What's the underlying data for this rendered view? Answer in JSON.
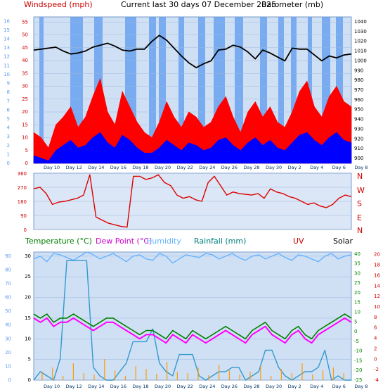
{
  "header": {
    "left_title": "Windspeed (mph)",
    "center_title": "Current last 30 days 07 December 2025",
    "right_title": "Barometer (mb)"
  },
  "lower_header": {
    "temperature": "Temperature (°C)",
    "dew_point": "Dew Point (°C)",
    "humidity": "Humidity",
    "rainfall": "Rainfall (mm)",
    "uv": "UV",
    "solar": "Solar"
  },
  "day_labels": [
    "Day 10",
    "Day 12",
    "Day 14",
    "Day 16",
    "Day 18",
    "Day 20",
    "Day 22",
    "Day 24",
    "Day 26",
    "Day 28",
    "Day 30",
    "Day 2",
    "Day 4",
    "Day 6",
    "Day 8"
  ],
  "compass": [
    "N",
    "W",
    "S",
    "E",
    "N"
  ],
  "colors": {
    "wind_gust": "#ff0000",
    "wind_avg": "#0000ff",
    "barometer": "#000000",
    "direction": "#dd0000",
    "temperature": "#008000",
    "dew_point": "#ff00ff",
    "humidity": "#66b3ff",
    "rainfall": "#3399cc",
    "uv": "#cc0000",
    "solar": "#ff9900",
    "plot_bg": "#cfe0f5",
    "bar_fill": "#5c9aee"
  },
  "chart_data": [
    {
      "type": "line",
      "name": "wind_barometer",
      "x_unit": "day",
      "x_range": [
        0,
        30
      ],
      "y_left_label": "Windspeed (mph)",
      "y_left_ticks_mph": [
        0,
        5,
        10,
        15,
        20,
        25,
        30,
        35,
        40,
        45,
        50,
        55
      ],
      "y_left_ticks_alt": [
        0,
        1,
        2,
        3,
        4,
        5,
        6,
        7,
        8,
        9,
        10,
        11,
        12,
        13,
        14,
        15,
        16
      ],
      "y_right_label": "Barometer (mb)",
      "y_right_ticks": [
        900,
        910,
        920,
        930,
        940,
        950,
        960,
        970,
        980,
        990,
        1000,
        1010,
        1020,
        1030,
        1040
      ],
      "barometer_mb": [
        1011,
        1012,
        1013,
        1014,
        1010,
        1007,
        1008,
        1010,
        1014,
        1016,
        1018,
        1015,
        1011,
        1010,
        1012,
        1012,
        1020,
        1026,
        1021,
        1013,
        1005,
        998,
        993,
        997,
        1000,
        1011,
        1012,
        1016,
        1014,
        1009,
        1002,
        1011,
        1008,
        1004,
        1000,
        1013,
        1012,
        1012,
        1006,
        1000,
        1005,
        1003,
        1006,
        1007
      ],
      "wind_gust_mph": [
        12,
        10,
        6,
        15,
        18,
        22,
        14,
        18,
        26,
        33,
        20,
        15,
        28,
        22,
        16,
        12,
        10,
        16,
        24,
        18,
        14,
        20,
        18,
        14,
        16,
        22,
        26,
        18,
        12,
        20,
        24,
        18,
        22,
        16,
        14,
        20,
        28,
        32,
        22,
        18,
        26,
        30,
        24,
        22
      ],
      "wind_avg_mph": [
        3,
        2,
        1,
        5,
        7,
        9,
        6,
        7,
        10,
        12,
        8,
        6,
        11,
        9,
        6,
        4,
        4,
        6,
        9,
        7,
        5,
        8,
        7,
        5,
        6,
        9,
        10,
        7,
        5,
        8,
        10,
        7,
        9,
        6,
        5,
        8,
        11,
        12,
        9,
        7,
        10,
        12,
        9,
        8
      ]
    },
    {
      "type": "line",
      "name": "wind_direction",
      "y_ticks": [
        0,
        90,
        180,
        270,
        360
      ],
      "direction_deg": [
        260,
        270,
        230,
        160,
        175,
        180,
        190,
        200,
        220,
        350,
        80,
        60,
        40,
        30,
        20,
        15,
        340,
        340,
        320,
        330,
        350,
        300,
        280,
        220,
        200,
        210,
        190,
        180,
        300,
        340,
        280,
        220,
        240,
        230,
        225,
        220,
        230,
        200,
        260,
        240,
        230,
        210,
        200,
        180,
        160,
        170,
        150,
        140,
        160,
        200,
        220,
        210
      ]
    },
    {
      "type": "line",
      "name": "temperature_humidity_rain",
      "y_left_temp_ticks": [
        0,
        5,
        10,
        15,
        20,
        25,
        30
      ],
      "y_left_hum_ticks": [
        0,
        10,
        20,
        30,
        40,
        50,
        60,
        70,
        80,
        90
      ],
      "y_right_solar_ticks": [
        -25,
        -20,
        -15,
        -10,
        -5,
        0,
        5,
        10,
        15,
        20,
        25,
        30,
        35,
        40
      ],
      "y_right_uv_ticks": [
        -4,
        -2,
        0,
        2,
        4,
        6,
        8,
        10,
        12,
        14,
        16,
        18,
        20
      ],
      "temperature_c": [
        16,
        15,
        16,
        14,
        15,
        15,
        16,
        15,
        14,
        13,
        14,
        15,
        15,
        14,
        13,
        12,
        11,
        12,
        12,
        11,
        10,
        12,
        11,
        10,
        12,
        11,
        10,
        11,
        12,
        13,
        12,
        11,
        10,
        12,
        13,
        14,
        12,
        11,
        10,
        12,
        13,
        11,
        10,
        12,
        13,
        14,
        15,
        16,
        15
      ],
      "dew_point_c": [
        15,
        14,
        15,
        13,
        14,
        14,
        15,
        14,
        13,
        12,
        13,
        14,
        14,
        13,
        12,
        11,
        10,
        11,
        11,
        10,
        9,
        11,
        10,
        9,
        11,
        10,
        9,
        10,
        11,
        12,
        11,
        10,
        9,
        11,
        12,
        13,
        11,
        10,
        9,
        11,
        12,
        10,
        9,
        11,
        12,
        13,
        14,
        15,
        14
      ],
      "humidity_pct": [
        88,
        90,
        86,
        92,
        91,
        89,
        87,
        90,
        93,
        91,
        88,
        90,
        92,
        89,
        86,
        90,
        91,
        88,
        87,
        92,
        90,
        85,
        88,
        91,
        90,
        89,
        92,
        91,
        88,
        90,
        92,
        89,
        87,
        90,
        91,
        88,
        90,
        92,
        89,
        87,
        91,
        90,
        88,
        86,
        90,
        92,
        88,
        90,
        91
      ],
      "rainfall_mm": [
        0,
        2,
        1,
        0,
        5,
        28,
        28,
        28,
        28,
        3,
        1,
        0,
        0,
        2,
        4,
        9,
        9,
        9,
        12,
        4,
        2,
        1,
        6,
        6,
        6,
        1,
        0,
        1,
        2,
        2,
        3,
        3,
        0,
        1,
        2,
        7,
        7,
        3,
        1,
        0,
        1,
        2,
        2,
        3,
        7,
        0,
        1,
        0,
        0
      ]
    }
  ]
}
